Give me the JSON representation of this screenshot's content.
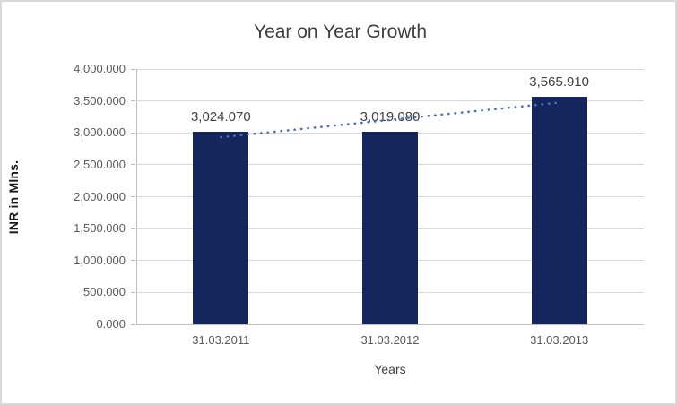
{
  "chart_data": {
    "type": "bar",
    "title": "Year on Year Growth",
    "categories": [
      "31.03.2011",
      "31.03.2012",
      "31.03.2013"
    ],
    "values": [
      3024.07,
      3019.08,
      3565.91
    ],
    "data_labels": [
      "3,024.070",
      "3,019.080",
      "3,565.910"
    ],
    "xlabel": "Years",
    "ylabel": "INR in Mlns.",
    "ylim": [
      0,
      4000
    ],
    "ytick_step": 500,
    "ytick_labels": [
      "0.000",
      "500.000",
      "1,000.000",
      "1,500.000",
      "2,000.000",
      "2,500.000",
      "3,000.000",
      "3,500.000",
      "4,000.000"
    ],
    "grid": true,
    "legend": "none",
    "bar_color": "#14265b",
    "trendline": {
      "type": "linear",
      "style": "dotted",
      "color": "#4472c4"
    }
  }
}
